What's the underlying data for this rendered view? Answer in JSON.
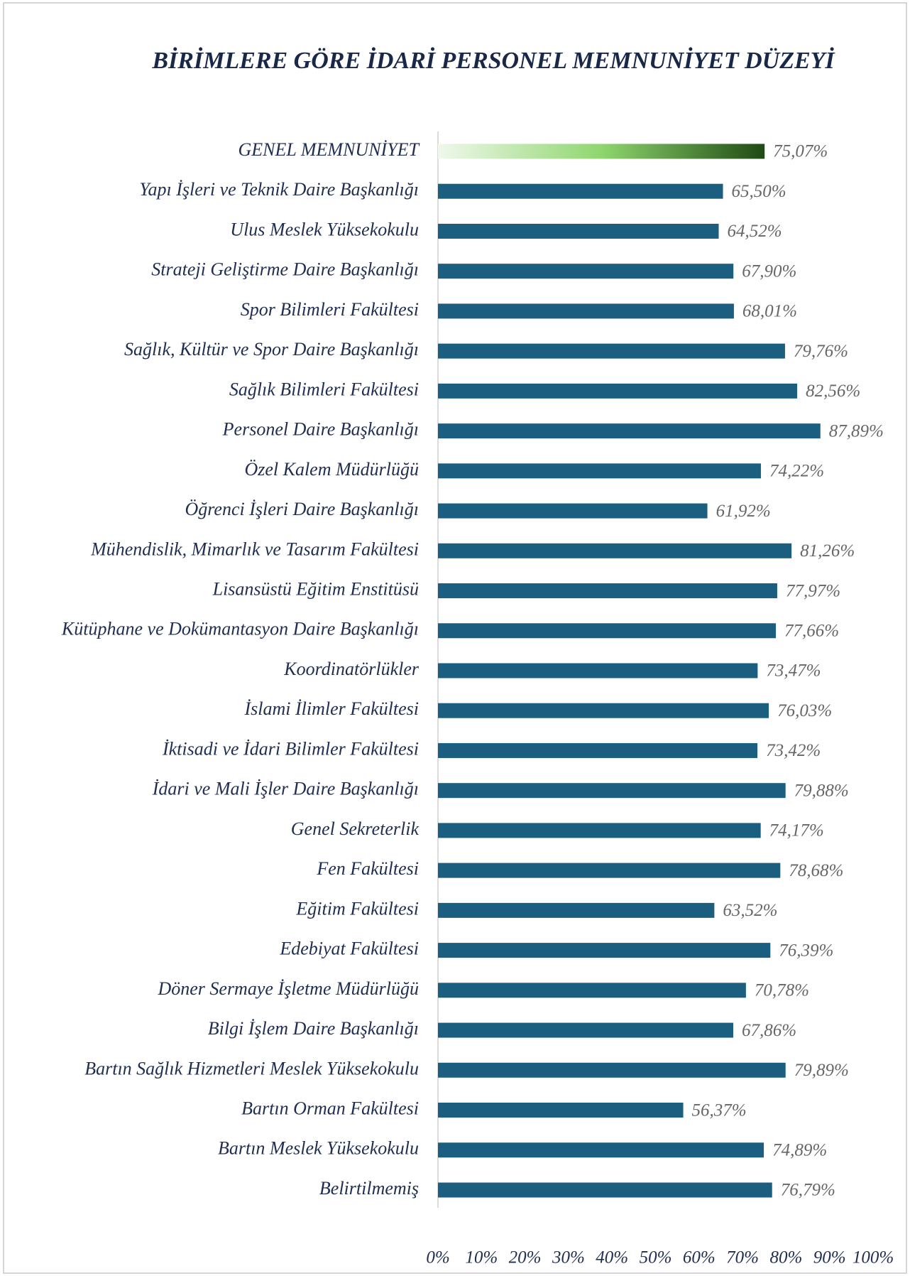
{
  "chart_data": {
    "type": "barh",
    "title": "BİRİMLERE GÖRE İDARİ PERSONEL MEMNUNİYET DÜZEYİ",
    "categories": [
      "GENEL MEMNUNİYET",
      "Yapı İşleri ve Teknik Daire Başkanlığı",
      "Ulus Meslek Yüksekokulu",
      "Strateji Geliştirme Daire Başkanlığı",
      "Spor Bilimleri Fakültesi",
      "Sağlık, Kültür ve Spor Daire Başkanlığı",
      "Sağlık Bilimleri Fakültesi",
      "Personel Daire Başkanlığı",
      "Özel Kalem Müdürlüğü",
      "Öğrenci İşleri Daire Başkanlığı",
      "Mühendislik, Mimarlık ve Tasarım Fakültesi",
      "Lisansüstü Eğitim Enstitüsü",
      "Kütüphane ve Dokümantasyon Daire Başkanlığı",
      "Koordinatörlükler",
      "İslami İlimler Fakültesi",
      "İktisadi ve İdari Bilimler Fakültesi",
      "İdari ve Mali İşler Daire Başkanlığı",
      "Genel Sekreterlik",
      "Fen Fakültesi",
      "Eğitim Fakültesi",
      "Edebiyat Fakültesi",
      "Döner Sermaye İşletme Müdürlüğü",
      "Bilgi İşlem Daire Başkanlığı",
      "Bartın Sağlık Hizmetleri Meslek Yüksekokulu",
      "Bartın Orman Fakültesi",
      "Bartın Meslek Yüksekokulu",
      "Belirtilmemiş"
    ],
    "values": [
      75.07,
      65.5,
      64.52,
      67.9,
      68.01,
      79.76,
      82.56,
      87.89,
      74.22,
      61.92,
      81.26,
      77.97,
      77.66,
      73.47,
      76.03,
      73.42,
      79.88,
      74.17,
      78.68,
      63.52,
      76.39,
      70.78,
      67.86,
      79.89,
      56.37,
      74.89,
      76.79
    ],
    "value_labels": [
      "75,07%",
      "65,50%",
      "64,52%",
      "67,90%",
      "68,01%",
      "79,76%",
      "82,56%",
      "87,89%",
      "74,22%",
      "61,92%",
      "81,26%",
      "77,97%",
      "77,66%",
      "73,47%",
      "76,03%",
      "73,42%",
      "79,88%",
      "74,17%",
      "78,68%",
      "63,52%",
      "76,39%",
      "70,78%",
      "67,86%",
      "79,89%",
      "56,37%",
      "74,89%",
      "76,79%"
    ],
    "color": "#1b5e80",
    "highlight_index": 0,
    "highlight_gradient": [
      "#f0f8ec",
      "#8fd66f",
      "#1f4a14"
    ],
    "xlim": [
      0,
      100
    ],
    "xticks": [
      {
        "value": 0,
        "label": "0%"
      },
      {
        "value": 10,
        "label": "10%"
      },
      {
        "value": 20,
        "label": "20%"
      },
      {
        "value": 30,
        "label": "30%"
      },
      {
        "value": 40,
        "label": "40%"
      },
      {
        "value": 50,
        "label": "50%"
      },
      {
        "value": 60,
        "label": "60%"
      },
      {
        "value": 70,
        "label": "70%"
      },
      {
        "value": 80,
        "label": "80%"
      },
      {
        "value": 90,
        "label": "90%"
      },
      {
        "value": 100,
        "label": "100%"
      }
    ],
    "grid": false
  }
}
